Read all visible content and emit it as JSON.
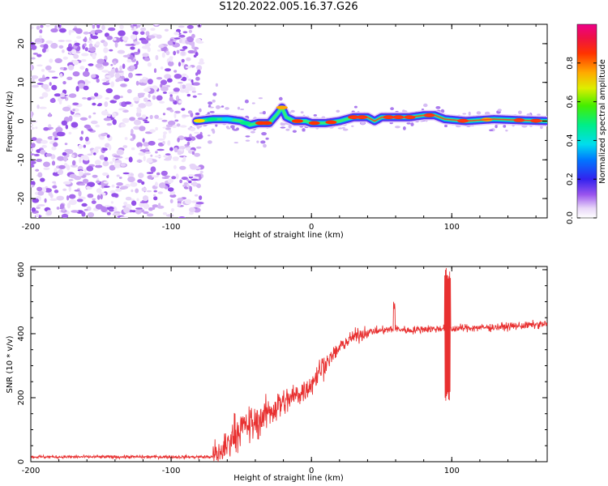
{
  "figure_title": "S120.2022.005.16.37.G26",
  "colors": {
    "snr_line": "#e83030",
    "noise_dot": "#9966ee",
    "axis": "#000000"
  },
  "chart_data": [
    {
      "type": "heatmap",
      "xlabel": "Height of straight line (km)",
      "ylabel": "Frequency (Hz)",
      "xlim": [
        -200,
        168
      ],
      "ylim": [
        -25,
        25
      ],
      "x_ticks": [
        -200,
        -100,
        0,
        100
      ],
      "y_ticks": [
        -20,
        -10,
        0,
        10,
        20
      ],
      "colorbar": {
        "label": "Normalized spectral amplitude",
        "range": [
          0,
          1
        ],
        "ticks": [
          "0.0",
          "0.2",
          "0.4",
          "0.6",
          "0.8"
        ],
        "colormap": "rainbow (white-purple-blue-cyan-green-yellow-orange-red-magenta)"
      },
      "noise_region_x": [
        -200,
        -78
      ],
      "signal_ridge": {
        "x": [
          -82,
          -70,
          -60,
          -50,
          -44,
          -38,
          -30,
          -24,
          -21,
          -18,
          -12,
          -4,
          0,
          10,
          20,
          30,
          40,
          45,
          50,
          60,
          70,
          80,
          88,
          95,
          110,
          130,
          150,
          168
        ],
        "y": [
          0,
          0.5,
          0.5,
          0,
          -1,
          -0.5,
          -0.5,
          2,
          3.5,
          1,
          0,
          0,
          -0.5,
          -0.5,
          0,
          1,
          1,
          0,
          1,
          1,
          1,
          1.5,
          1.5,
          0.5,
          0,
          0.5,
          0.2,
          0
        ]
      }
    },
    {
      "type": "line",
      "xlabel": "Height of straight line (km)",
      "ylabel": "SNR (10 * v/v)",
      "xlim": [
        -200,
        168
      ],
      "ylim": [
        0,
        610
      ],
      "x_ticks": [
        -200,
        -100,
        0,
        100
      ],
      "y_ticks": [
        0,
        200,
        400,
        600
      ],
      "series": [
        {
          "x": [
            -200,
            -150,
            -100,
            -70,
            -62,
            -55,
            -48,
            -40,
            -32,
            -26,
            -20,
            -12,
            -6,
            0,
            8,
            15,
            22,
            30,
            40,
            50,
            60,
            70,
            80,
            90,
            96,
            100,
            110,
            130,
            150,
            168
          ],
          "y": [
            15,
            15,
            15,
            15,
            40,
            90,
            110,
            120,
            150,
            170,
            185,
            205,
            220,
            245,
            300,
            330,
            365,
            390,
            405,
            410,
            415,
            410,
            415,
            415,
            420,
            415,
            418,
            420,
            425,
            430
          ]
        }
      ],
      "annotations": {
        "spike_x": 97,
        "spike_range": [
          190,
          610
        ],
        "minor_spike_x": 59,
        "minor_spike_top": 500
      }
    }
  ]
}
